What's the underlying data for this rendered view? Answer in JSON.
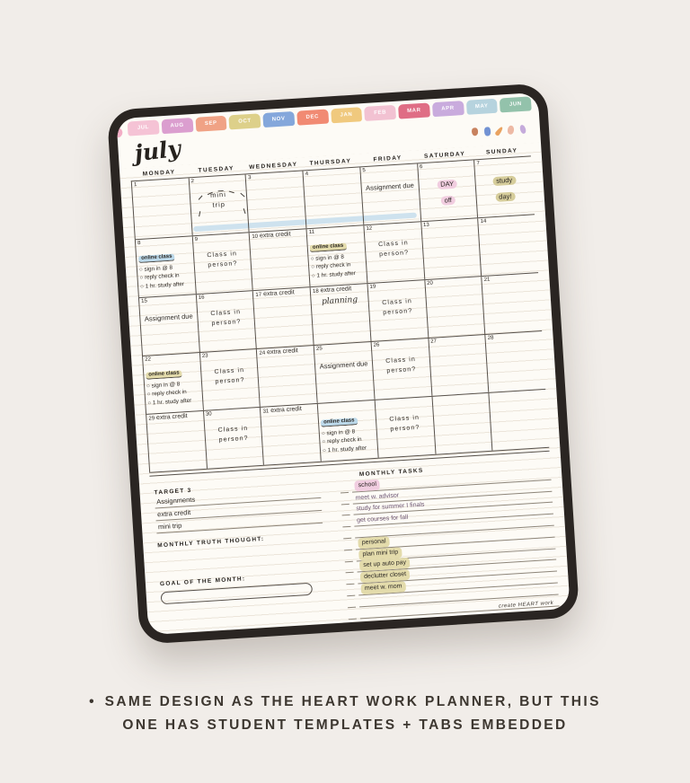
{
  "caption": {
    "bullet": "•",
    "line1": "SAME DESIGN AS THE HEART WORK PLANNER, BUT THIS",
    "line2": "ONE HAS STUDENT TEMPLATES + TABS EMBEDDED"
  },
  "icons": {
    "checkbox": "○"
  },
  "colors": {
    "ink": "#2d2925",
    "ink_purple": "#6d5673",
    "bar": "#c6ddec",
    "highlights": {
      "pink": "#f1cde0",
      "olive": "#d6cd9b",
      "blue": "#bcd9ea",
      "tan": "#e3dbab"
    }
  },
  "planner": {
    "title": "july",
    "footer_brand": "create HEART work",
    "tabs": [
      {
        "label": "JUL",
        "color": "#f5c3d5"
      },
      {
        "label": "AUG",
        "color": "#db9ecf"
      },
      {
        "label": "SEP",
        "color": "#f0a285"
      },
      {
        "label": "OCT",
        "color": "#ddd08a"
      },
      {
        "label": "NOV",
        "color": "#84a7db"
      },
      {
        "label": "DEC",
        "color": "#f18a73"
      },
      {
        "label": "JAN",
        "color": "#f0c97e"
      },
      {
        "label": "FEB",
        "color": "#f2c2d2"
      },
      {
        "label": "MAR",
        "color": "#df6d85"
      },
      {
        "label": "APR",
        "color": "#c9abdd"
      },
      {
        "label": "MAY",
        "color": "#b6d3de"
      },
      {
        "label": "JUN",
        "color": "#93c2ab"
      }
    ],
    "corner_dot_color": "#f3aec6",
    "stickers": [
      {
        "name": "acorn-sticker",
        "color": "#c8825f"
      },
      {
        "name": "flower-sticker",
        "color": "#7292d3"
      },
      {
        "name": "leaf-sticker",
        "color": "#e9a361"
      },
      {
        "name": "petal-sticker",
        "color": "#edb9a4"
      },
      {
        "name": "petal-sticker-2",
        "color": "#c5abdb"
      }
    ],
    "day_headers": [
      "MONDAY",
      "TUESDAY",
      "WEDNESDAY",
      "THURSDAY",
      "FRIDAY",
      "SATURDAY",
      "SUNDAY"
    ],
    "checklist": {
      "title": "online class",
      "tasks": [
        "sign in @ 8",
        "reply check in",
        "1 hr. study after"
      ]
    },
    "weeks": [
      {
        "bar": true,
        "cells": [
          {
            "num": "1",
            "items": []
          },
          {
            "num": "2",
            "items": [
              {
                "t": "doodle",
                "lines": [
                  "mini",
                  "trip"
                ]
              }
            ]
          },
          {
            "num": "3",
            "items": []
          },
          {
            "num": "4",
            "items": []
          },
          {
            "num": "5",
            "items": [
              {
                "t": "text",
                "text": "Assignment due"
              }
            ]
          },
          {
            "num": "6",
            "items": [
              {
                "t": "hl",
                "lines": [
                  "DAY",
                  "off"
                ],
                "color": "pink"
              }
            ]
          },
          {
            "num": "7",
            "items": [
              {
                "t": "hl",
                "lines": [
                  "study",
                  "day!"
                ],
                "color": "olive"
              }
            ]
          }
        ]
      },
      {
        "bar": false,
        "cells": [
          {
            "num": "8",
            "items": [
              {
                "t": "check",
                "hl": "blue"
              }
            ]
          },
          {
            "num": "9",
            "items": [
              {
                "t": "text2",
                "text": "Class in person?"
              }
            ]
          },
          {
            "num": "10",
            "items": [
              {
                "t": "inline",
                "text": "extra credit"
              }
            ]
          },
          {
            "num": "11",
            "items": [
              {
                "t": "check",
                "hl": "tan"
              }
            ]
          },
          {
            "num": "12",
            "items": [
              {
                "t": "text2",
                "text": "Class in person?"
              }
            ]
          },
          {
            "num": "13",
            "items": []
          },
          {
            "num": "14",
            "items": []
          }
        ]
      },
      {
        "bar": false,
        "cells": [
          {
            "num": "15",
            "items": [
              {
                "t": "text",
                "text": "Assignment due"
              }
            ]
          },
          {
            "num": "16",
            "items": [
              {
                "t": "text2",
                "text": "Class in person?"
              }
            ]
          },
          {
            "num": "17",
            "items": [
              {
                "t": "inline",
                "text": "extra credit"
              }
            ]
          },
          {
            "num": "18",
            "items": [
              {
                "t": "inline",
                "text": "extra credit"
              },
              {
                "t": "script",
                "text": "planning"
              }
            ]
          },
          {
            "num": "19",
            "items": [
              {
                "t": "text2",
                "text": "Class in person?"
              }
            ]
          },
          {
            "num": "20",
            "items": []
          },
          {
            "num": "21",
            "items": []
          }
        ]
      },
      {
        "bar": false,
        "cells": [
          {
            "num": "22",
            "items": [
              {
                "t": "check",
                "hl": "tan"
              }
            ]
          },
          {
            "num": "23",
            "items": [
              {
                "t": "text2",
                "text": "Class in person?"
              }
            ]
          },
          {
            "num": "24",
            "items": [
              {
                "t": "inline",
                "text": "extra credit"
              }
            ]
          },
          {
            "num": "25",
            "items": [
              {
                "t": "text",
                "text": "Assignment due"
              }
            ]
          },
          {
            "num": "26",
            "items": [
              {
                "t": "text2",
                "text": "Class in person?"
              }
            ]
          },
          {
            "num": "27",
            "items": []
          },
          {
            "num": "28",
            "items": []
          }
        ]
      },
      {
        "bar": false,
        "cells": [
          {
            "num": "29",
            "items": [
              {
                "t": "inline",
                "text": "extra credit"
              }
            ]
          },
          {
            "num": "30",
            "items": [
              {
                "t": "text2",
                "text": "Class in person?"
              }
            ]
          },
          {
            "num": "31",
            "items": [
              {
                "t": "inline",
                "text": "extra credit"
              }
            ]
          },
          {
            "num": "",
            "items": [
              {
                "t": "check",
                "hl": "blue"
              }
            ]
          },
          {
            "num": "",
            "items": [
              {
                "t": "text2",
                "text": "Class in person?"
              }
            ]
          },
          {
            "num": "",
            "items": []
          },
          {
            "num": "",
            "items": []
          }
        ]
      }
    ],
    "bottom_left": {
      "target_label": "TARGET 3",
      "target_items": [
        "Assignments",
        "extra credit",
        "mini trip"
      ],
      "truth_label": "MONTHLY TRUTH THOUGHT:",
      "goal_label": "GOAL OF THE MONTH:"
    },
    "monthly_tasks": {
      "label": "MONTHLY TASKS",
      "items": [
        {
          "text": "school",
          "hl": "pink",
          "ink": "ink"
        },
        {
          "text": "meet w. advisor",
          "hl": null,
          "ink": "ink_purple"
        },
        {
          "text": "study for summer I finals",
          "hl": null,
          "ink": "ink_purple"
        },
        {
          "text": "get courses for fall",
          "hl": null,
          "ink": "ink_purple"
        },
        {
          "text": "",
          "hl": null,
          "ink": "ink"
        },
        {
          "text": "personal",
          "hl": "tan",
          "ink": "ink"
        },
        {
          "text": "plan mini trip",
          "hl": "tan",
          "ink": "ink"
        },
        {
          "text": "set up auto pay",
          "hl": "tan",
          "ink": "ink"
        },
        {
          "text": "declutter closet",
          "hl": "tan",
          "ink": "ink"
        },
        {
          "text": "meet w. mom",
          "hl": "tan",
          "ink": "ink"
        },
        {
          "text": "",
          "hl": null,
          "ink": "ink"
        },
        {
          "text": "",
          "hl": null,
          "ink": "ink"
        }
      ]
    }
  }
}
